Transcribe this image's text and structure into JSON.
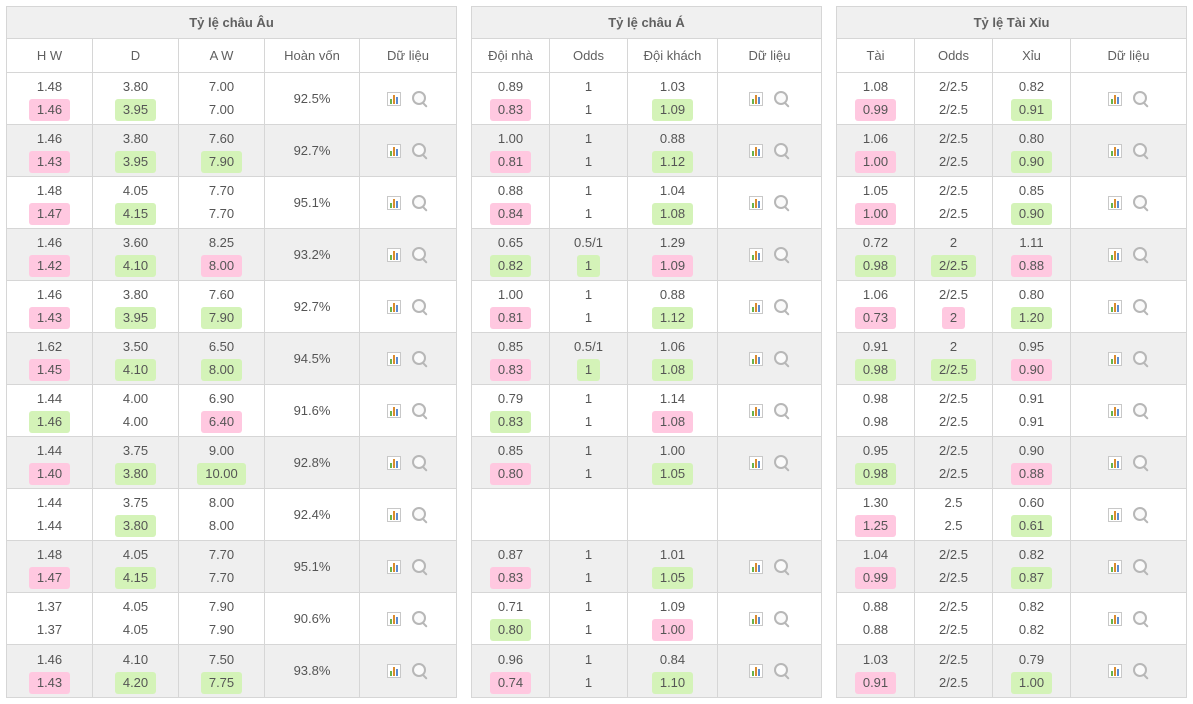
{
  "colors": {
    "border": "#d6d6d6",
    "header_bg": "#f0f0f0",
    "row_alt_bg": "#efefef",
    "text": "#555555",
    "highlight_up": "#d4f3b8",
    "highlight_down": "#ffc8e0"
  },
  "euro": {
    "title": "Tỷ lệ châu Âu",
    "headers": [
      "H W",
      "D",
      "A W",
      "Hoàn vốn",
      "Dữ liệu"
    ],
    "rows": [
      {
        "hw": [
          "1.48",
          "1.46"
        ],
        "d": [
          "3.80",
          "3.95"
        ],
        "aw": [
          "7.00",
          "7.00"
        ],
        "ret": "92.5%",
        "hl": {
          "hw2": "down",
          "d2": "up"
        }
      },
      {
        "hw": [
          "1.46",
          "1.43"
        ],
        "d": [
          "3.80",
          "3.95"
        ],
        "aw": [
          "7.60",
          "7.90"
        ],
        "ret": "92.7%",
        "hl": {
          "hw2": "down",
          "d2": "up",
          "aw2": "up"
        }
      },
      {
        "hw": [
          "1.48",
          "1.47"
        ],
        "d": [
          "4.05",
          "4.15"
        ],
        "aw": [
          "7.70",
          "7.70"
        ],
        "ret": "95.1%",
        "hl": {
          "hw2": "down",
          "d2": "up"
        }
      },
      {
        "hw": [
          "1.46",
          "1.42"
        ],
        "d": [
          "3.60",
          "4.10"
        ],
        "aw": [
          "8.25",
          "8.00"
        ],
        "ret": "93.2%",
        "hl": {
          "hw2": "down",
          "d2": "up",
          "aw2": "down"
        }
      },
      {
        "hw": [
          "1.46",
          "1.43"
        ],
        "d": [
          "3.80",
          "3.95"
        ],
        "aw": [
          "7.60",
          "7.90"
        ],
        "ret": "92.7%",
        "hl": {
          "hw2": "down",
          "d2": "up",
          "aw2": "up"
        }
      },
      {
        "hw": [
          "1.62",
          "1.45"
        ],
        "d": [
          "3.50",
          "4.10"
        ],
        "aw": [
          "6.50",
          "8.00"
        ],
        "ret": "94.5%",
        "hl": {
          "hw2": "down",
          "d2": "up",
          "aw2": "up"
        }
      },
      {
        "hw": [
          "1.44",
          "1.46"
        ],
        "d": [
          "4.00",
          "4.00"
        ],
        "aw": [
          "6.90",
          "6.40"
        ],
        "ret": "91.6%",
        "hl": {
          "hw2": "up",
          "aw2": "down"
        }
      },
      {
        "hw": [
          "1.44",
          "1.40"
        ],
        "d": [
          "3.75",
          "3.80"
        ],
        "aw": [
          "9.00",
          "10.00"
        ],
        "ret": "92.8%",
        "hl": {
          "hw2": "down",
          "d2": "up",
          "aw2": "up"
        }
      },
      {
        "hw": [
          "1.44",
          "1.44"
        ],
        "d": [
          "3.75",
          "3.80"
        ],
        "aw": [
          "8.00",
          "8.00"
        ],
        "ret": "92.4%",
        "hl": {
          "d2": "up"
        }
      },
      {
        "hw": [
          "1.48",
          "1.47"
        ],
        "d": [
          "4.05",
          "4.15"
        ],
        "aw": [
          "7.70",
          "7.70"
        ],
        "ret": "95.1%",
        "hl": {
          "hw2": "down",
          "d2": "up"
        }
      },
      {
        "hw": [
          "1.37",
          "1.37"
        ],
        "d": [
          "4.05",
          "4.05"
        ],
        "aw": [
          "7.90",
          "7.90"
        ],
        "ret": "90.6%",
        "hl": {}
      },
      {
        "hw": [
          "1.46",
          "1.43"
        ],
        "d": [
          "4.10",
          "4.20"
        ],
        "aw": [
          "7.50",
          "7.75"
        ],
        "ret": "93.8%",
        "hl": {
          "hw2": "down",
          "d2": "up",
          "aw2": "up"
        }
      }
    ]
  },
  "asia": {
    "title": "Tỷ lệ châu Á",
    "headers": [
      "Đội nhà",
      "Odds",
      "Đội khách",
      "Dữ liệu"
    ],
    "rows": [
      {
        "home": [
          "0.89",
          "0.83"
        ],
        "odds": [
          "1",
          "1"
        ],
        "away": [
          "1.03",
          "1.09"
        ],
        "hl": {
          "home2": "down",
          "away2": "up"
        }
      },
      {
        "home": [
          "1.00",
          "0.81"
        ],
        "odds": [
          "1",
          "1"
        ],
        "away": [
          "0.88",
          "1.12"
        ],
        "hl": {
          "home2": "down",
          "away2": "up"
        }
      },
      {
        "home": [
          "0.88",
          "0.84"
        ],
        "odds": [
          "1",
          "1"
        ],
        "away": [
          "1.04",
          "1.08"
        ],
        "hl": {
          "home2": "down",
          "away2": "up"
        }
      },
      {
        "home": [
          "0.65",
          "0.82"
        ],
        "odds": [
          "0.5/1",
          "1"
        ],
        "away": [
          "1.29",
          "1.09"
        ],
        "hl": {
          "home2": "up",
          "odds2": "up",
          "away2": "down"
        }
      },
      {
        "home": [
          "1.00",
          "0.81"
        ],
        "odds": [
          "1",
          "1"
        ],
        "away": [
          "0.88",
          "1.12"
        ],
        "hl": {
          "home2": "down",
          "away2": "up"
        }
      },
      {
        "home": [
          "0.85",
          "0.83"
        ],
        "odds": [
          "0.5/1",
          "1"
        ],
        "away": [
          "1.06",
          "1.08"
        ],
        "hl": {
          "home2": "down",
          "odds2": "up",
          "away2": "up"
        }
      },
      {
        "home": [
          "0.79",
          "0.83"
        ],
        "odds": [
          "1",
          "1"
        ],
        "away": [
          "1.14",
          "1.08"
        ],
        "hl": {
          "home2": "up",
          "away2": "down"
        }
      },
      {
        "home": [
          "0.85",
          "0.80"
        ],
        "odds": [
          "1",
          "1"
        ],
        "away": [
          "1.00",
          "1.05"
        ],
        "hl": {
          "home2": "down",
          "away2": "up"
        }
      },
      {
        "home": [
          "",
          ""
        ],
        "odds": [
          "",
          ""
        ],
        "away": [
          "",
          ""
        ],
        "hl": {},
        "empty": true
      },
      {
        "home": [
          "0.87",
          "0.83"
        ],
        "odds": [
          "1",
          "1"
        ],
        "away": [
          "1.01",
          "1.05"
        ],
        "hl": {
          "home2": "down",
          "away2": "up"
        }
      },
      {
        "home": [
          "0.71",
          "0.80"
        ],
        "odds": [
          "1",
          "1"
        ],
        "away": [
          "1.09",
          "1.00"
        ],
        "hl": {
          "home2": "up",
          "away2": "down"
        }
      },
      {
        "home": [
          "0.96",
          "0.74"
        ],
        "odds": [
          "1",
          "1"
        ],
        "away": [
          "0.84",
          "1.10"
        ],
        "hl": {
          "home2": "down",
          "away2": "up"
        }
      }
    ]
  },
  "taixiu": {
    "title": "Tỷ lệ Tài Xỉu",
    "headers": [
      "Tài",
      "Odds",
      "Xỉu",
      "Dữ liệu"
    ],
    "rows": [
      {
        "tai": [
          "1.08",
          "0.99"
        ],
        "odds": [
          "2/2.5",
          "2/2.5"
        ],
        "xiu": [
          "0.82",
          "0.91"
        ],
        "hl": {
          "tai2": "down",
          "xiu2": "up"
        }
      },
      {
        "tai": [
          "1.06",
          "1.00"
        ],
        "odds": [
          "2/2.5",
          "2/2.5"
        ],
        "xiu": [
          "0.80",
          "0.90"
        ],
        "hl": {
          "tai2": "down",
          "xiu2": "up"
        }
      },
      {
        "tai": [
          "1.05",
          "1.00"
        ],
        "odds": [
          "2/2.5",
          "2/2.5"
        ],
        "xiu": [
          "0.85",
          "0.90"
        ],
        "hl": {
          "tai2": "down",
          "xiu2": "up"
        }
      },
      {
        "tai": [
          "0.72",
          "0.98"
        ],
        "odds": [
          "2",
          "2/2.5"
        ],
        "xiu": [
          "1.11",
          "0.88"
        ],
        "hl": {
          "tai2": "up",
          "odds2": "up",
          "xiu2": "down"
        }
      },
      {
        "tai": [
          "1.06",
          "0.73"
        ],
        "odds": [
          "2/2.5",
          "2"
        ],
        "xiu": [
          "0.80",
          "1.20"
        ],
        "hl": {
          "tai2": "down",
          "odds2": "down",
          "xiu2": "up"
        }
      },
      {
        "tai": [
          "0.91",
          "0.98"
        ],
        "odds": [
          "2",
          "2/2.5"
        ],
        "xiu": [
          "0.95",
          "0.90"
        ],
        "hl": {
          "tai2": "up",
          "odds2": "up",
          "xiu2": "down"
        }
      },
      {
        "tai": [
          "0.98",
          "0.98"
        ],
        "odds": [
          "2/2.5",
          "2/2.5"
        ],
        "xiu": [
          "0.91",
          "0.91"
        ],
        "hl": {}
      },
      {
        "tai": [
          "0.95",
          "0.98"
        ],
        "odds": [
          "2/2.5",
          "2/2.5"
        ],
        "xiu": [
          "0.90",
          "0.88"
        ],
        "hl": {
          "tai2": "up",
          "xiu2": "down"
        }
      },
      {
        "tai": [
          "1.30",
          "1.25"
        ],
        "odds": [
          "2.5",
          "2.5"
        ],
        "xiu": [
          "0.60",
          "0.61"
        ],
        "hl": {
          "tai2": "down",
          "xiu2": "up"
        }
      },
      {
        "tai": [
          "1.04",
          "0.99"
        ],
        "odds": [
          "2/2.5",
          "2/2.5"
        ],
        "xiu": [
          "0.82",
          "0.87"
        ],
        "hl": {
          "tai2": "down",
          "xiu2": "up"
        }
      },
      {
        "tai": [
          "0.88",
          "0.88"
        ],
        "odds": [
          "2/2.5",
          "2/2.5"
        ],
        "xiu": [
          "0.82",
          "0.82"
        ],
        "hl": {}
      },
      {
        "tai": [
          "1.03",
          "0.91"
        ],
        "odds": [
          "2/2.5",
          "2/2.5"
        ],
        "xiu": [
          "0.79",
          "1.00"
        ],
        "hl": {
          "tai2": "down",
          "xiu2": "up"
        }
      }
    ]
  }
}
